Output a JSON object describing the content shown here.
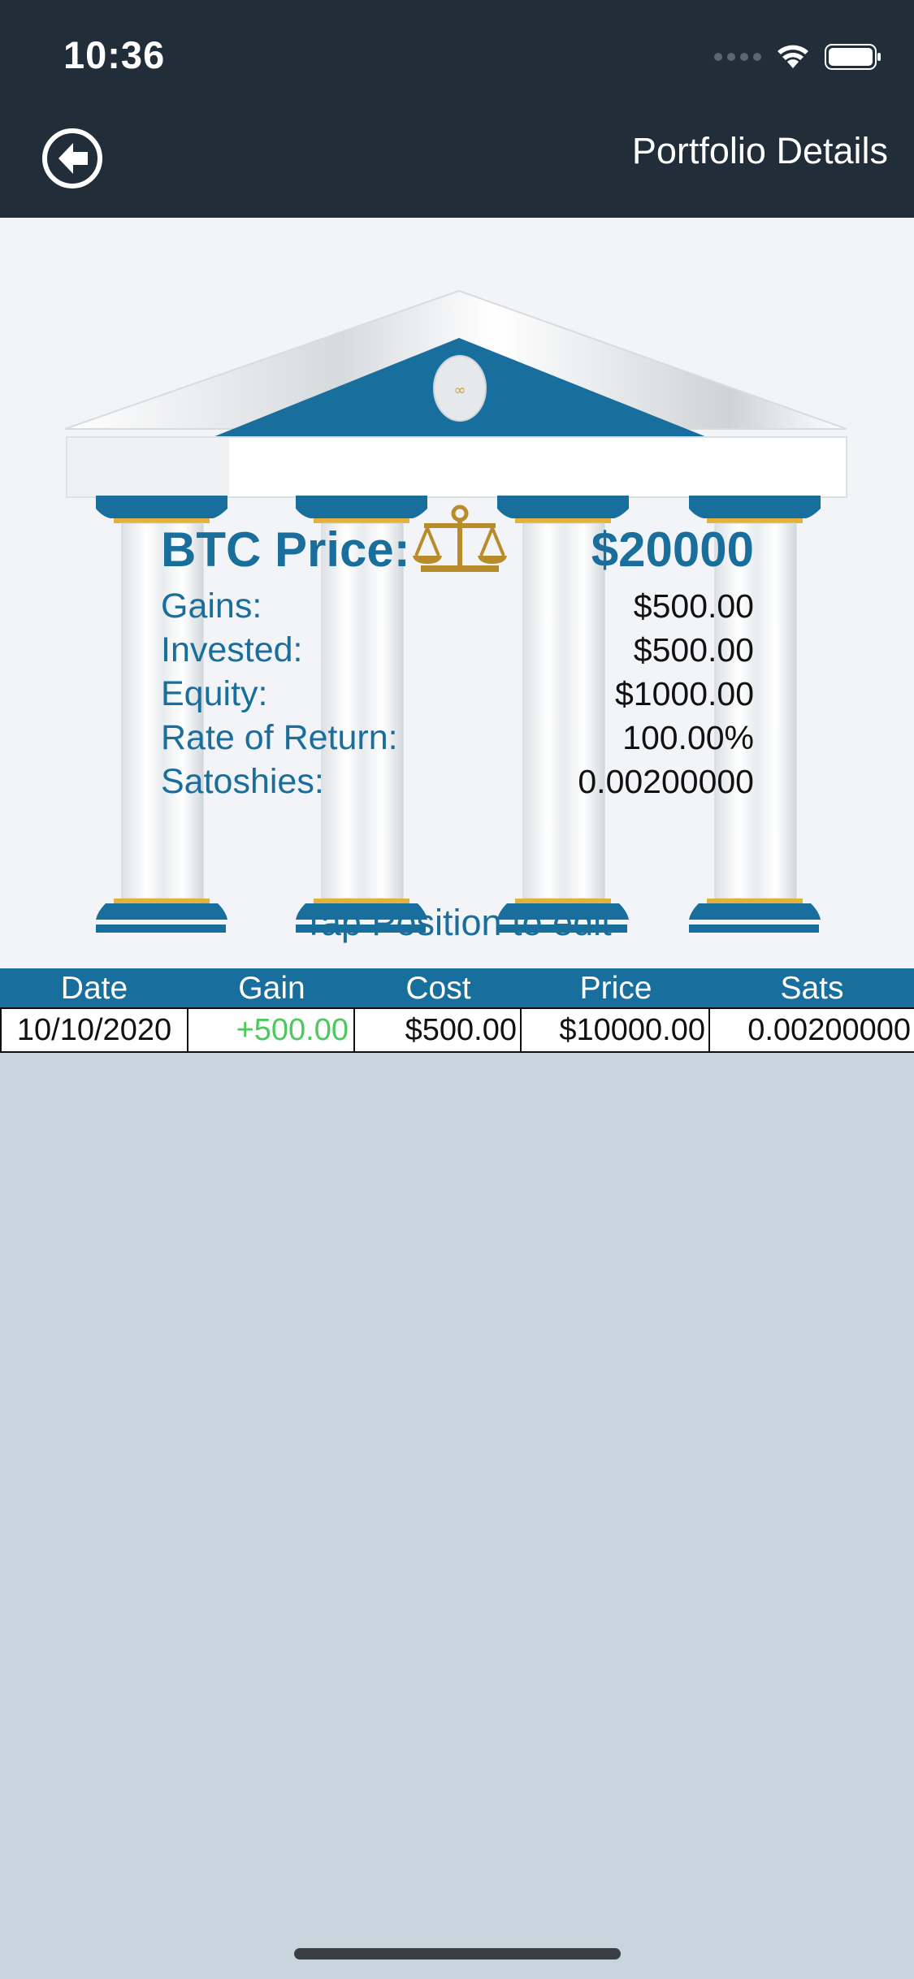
{
  "status_bar": {
    "time": "10:36"
  },
  "nav": {
    "title": "Portfolio Details",
    "back_icon": "back-arrow-circle-icon"
  },
  "summary": {
    "btc_price_label": "BTC Price:",
    "btc_price_value": "$20000",
    "rows": [
      {
        "label": "Gains:",
        "value": "$500.00"
      },
      {
        "label": "Invested:",
        "value": "$500.00"
      },
      {
        "label": "Equity:",
        "value": "$1000.00"
      },
      {
        "label": "Rate of Return:",
        "value": "100.00%"
      },
      {
        "label": "Satoshies:",
        "value": "0.00200000"
      }
    ]
  },
  "hint": "Tap Position to edit",
  "table": {
    "columns": [
      "Date",
      "Gain",
      "Cost",
      "Price",
      "Sats"
    ],
    "rows": [
      [
        "10/10/2020",
        "+500.00",
        "$500.00",
        "$10000.00",
        "0.00200000"
      ]
    ]
  },
  "colors": {
    "nav_bg": "#212d38",
    "accent_blue": "#1a6e9c",
    "gold": "#b88c2a",
    "gain_green": "#4cc85c",
    "page_bg": "#c9d5dd",
    "hero_bg": "#f2f4f8"
  }
}
